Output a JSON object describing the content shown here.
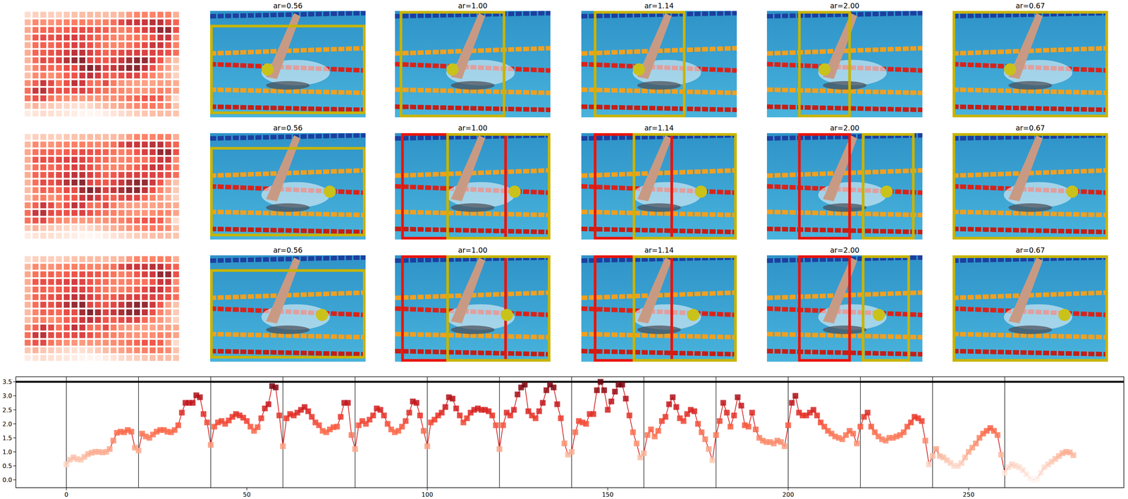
{
  "chart_data": {
    "type": "line",
    "color": "#d62728",
    "marker": "square",
    "x": [
      0,
      1,
      2,
      3,
      4,
      5,
      6,
      7,
      8,
      9,
      10,
      11,
      12,
      13,
      14,
      15,
      16,
      17,
      18,
      19,
      20,
      21,
      22,
      23,
      24,
      25,
      26,
      27,
      28,
      29,
      30,
      31,
      32,
      33,
      34,
      35,
      36,
      37,
      38,
      39,
      40,
      41,
      42,
      43,
      44,
      45,
      46,
      47,
      48,
      49,
      50,
      51,
      52,
      53,
      54,
      55,
      56,
      57,
      58,
      59,
      60,
      61,
      62,
      63,
      64,
      65,
      66,
      67,
      68,
      69,
      70,
      71,
      72,
      73,
      74,
      75,
      76,
      77,
      78,
      79,
      80,
      81,
      82,
      83,
      84,
      85,
      86,
      87,
      88,
      89,
      90,
      91,
      92,
      93,
      94,
      95,
      96,
      97,
      98,
      99,
      100,
      101,
      102,
      103,
      104,
      105,
      106,
      107,
      108,
      109,
      110,
      111,
      112,
      113,
      114,
      115,
      116,
      117,
      118,
      119,
      120,
      121,
      122,
      123,
      124,
      125,
      126,
      127,
      128,
      129,
      130,
      131,
      132,
      133,
      134,
      135,
      136,
      137,
      138,
      139,
      140,
      141,
      142,
      143,
      144,
      145,
      146,
      147,
      148,
      149,
      150,
      151,
      152,
      153,
      154,
      155,
      156,
      157,
      158,
      159,
      160,
      161,
      162,
      163,
      164,
      165,
      166,
      167,
      168,
      169,
      170,
      171,
      172,
      173,
      174,
      175,
      176,
      177,
      178,
      179,
      180,
      181,
      182,
      183,
      184,
      185,
      186,
      187,
      188,
      189,
      190,
      191,
      192,
      193,
      194,
      195,
      196,
      197,
      198,
      199,
      200,
      201,
      202,
      203,
      204,
      205,
      206,
      207,
      208,
      209,
      210,
      211,
      212,
      213,
      214,
      215,
      216,
      217,
      218,
      219,
      220,
      221,
      222,
      223,
      224,
      225,
      226,
      227,
      228,
      229,
      230,
      231,
      232,
      233,
      234,
      235,
      236,
      237,
      238,
      239,
      240,
      241,
      242,
      243,
      244,
      245,
      246,
      247,
      248,
      249,
      250,
      251,
      252,
      253,
      254,
      255,
      256,
      257,
      258,
      259,
      260,
      261,
      262,
      263,
      264,
      265,
      266,
      267,
      268,
      269,
      270,
      271,
      272,
      273,
      274,
      275,
      276,
      277,
      278,
      279
    ],
    "values": [
      0.55,
      0.72,
      0.8,
      0.74,
      0.72,
      0.82,
      0.92,
      0.97,
      1.0,
      1.0,
      0.98,
      1.0,
      1.1,
      1.4,
      1.68,
      1.72,
      1.7,
      1.78,
      1.72,
      1.15,
      1.05,
      1.65,
      1.55,
      1.5,
      1.62,
      1.72,
      1.78,
      1.78,
      1.72,
      1.7,
      1.78,
      1.95,
      2.4,
      2.75,
      2.75,
      2.75,
      3.02,
      2.95,
      2.35,
      2.05,
      1.25,
      1.9,
      2.05,
      2.1,
      2.0,
      2.12,
      2.25,
      2.35,
      2.3,
      2.22,
      2.1,
      1.9,
      1.75,
      1.88,
      2.2,
      2.55,
      2.7,
      3.35,
      3.3,
      2.3,
      1.2,
      2.2,
      2.35,
      2.3,
      2.4,
      2.5,
      2.6,
      2.45,
      2.25,
      2.05,
      1.95,
      1.75,
      1.7,
      1.8,
      1.88,
      1.9,
      2.25,
      2.75,
      2.75,
      1.6,
      1.1,
      1.95,
      2.1,
      2.0,
      2.15,
      2.3,
      2.55,
      2.5,
      2.3,
      2.0,
      1.8,
      1.7,
      1.75,
      1.9,
      2.1,
      2.4,
      2.8,
      2.75,
      2.3,
      1.75,
      1.2,
      2.05,
      2.15,
      2.3,
      2.4,
      2.6,
      2.95,
      2.9,
      2.55,
      2.3,
      2.05,
      2.2,
      2.4,
      2.5,
      2.55,
      2.5,
      2.5,
      2.45,
      2.3,
      1.95,
      1.1,
      1.95,
      2.4,
      2.3,
      2.5,
      3.05,
      3.3,
      3.4,
      2.45,
      2.3,
      2.2,
      2.45,
      2.75,
      3.2,
      3.4,
      3.3,
      2.7,
      2.2,
      1.3,
      0.9,
      1.0,
      1.7,
      2.1,
      2.05,
      2.0,
      2.35,
      2.35,
      3.2,
      3.5,
      3.2,
      2.5,
      2.8,
      3.15,
      3.4,
      3.4,
      2.9,
      2.3,
      1.7,
      1.3,
      0.8,
      0.95,
      1.6,
      1.8,
      1.55,
      1.75,
      2.1,
      2.25,
      2.7,
      2.95,
      2.6,
      2.2,
      2.1,
      2.35,
      2.5,
      2.45,
      2.0,
      1.7,
      1.45,
      1.1,
      0.7,
      1.6,
      2.1,
      2.75,
      2.4,
      1.9,
      2.3,
      2.95,
      2.65,
      1.95,
      1.9,
      2.4,
      1.8,
      1.5,
      1.4,
      1.35,
      1.35,
      1.3,
      1.4,
      1.35,
      1.2,
      1.95,
      2.75,
      3.0,
      2.4,
      2.3,
      2.3,
      2.4,
      2.5,
      2.3,
      2.05,
      1.9,
      1.75,
      1.65,
      1.55,
      1.5,
      1.45,
      1.6,
      1.75,
      1.65,
      1.3,
      1.9,
      2.25,
      2.4,
      1.9,
      1.7,
      1.55,
      1.45,
      1.4,
      1.5,
      1.5,
      1.55,
      1.6,
      1.7,
      1.9,
      2.05,
      2.25,
      2.2,
      2.1,
      1.4,
      0.55,
      0.85,
      1.1,
      0.85,
      0.8,
      0.7,
      0.6,
      0.5,
      0.5,
      0.6,
      0.8,
      1.0,
      1.15,
      1.3,
      1.5,
      1.65,
      1.75,
      1.85,
      1.75,
      1.6,
      0.9,
      0.25,
      0.45,
      0.55,
      0.5,
      0.45,
      0.35,
      0.2,
      0.05,
      0.0,
      0.05,
      0.25,
      0.45,
      0.55,
      0.65,
      0.75,
      0.85,
      0.95,
      1.0,
      0.98,
      0.88
    ],
    "color_range": [
      0,
      3.5
    ],
    "heatmap_columns": 20,
    "xlim": [
      -14,
      293
    ],
    "ylim": [
      -0.28,
      3.68
    ],
    "xticks": [
      0,
      50,
      100,
      150,
      200,
      250
    ],
    "yticks": [
      {
        "value": 0,
        "label": "0.0"
      },
      {
        "value": 0.5,
        "label": "0.5"
      },
      {
        "value": 1,
        "label": "1.0"
      },
      {
        "value": 1.5,
        "label": "1.5"
      },
      {
        "value": 2,
        "label": "2.0"
      },
      {
        "value": 2.5,
        "label": "2.5"
      },
      {
        "value": 3,
        "label": "3.0"
      },
      {
        "value": 3.5,
        "label": "3.5"
      }
    ],
    "vlines": [
      0,
      20,
      40,
      60,
      80,
      100,
      120,
      140,
      160,
      180,
      200,
      220,
      240,
      260
    ],
    "hlines": [
      3.5
    ]
  },
  "panels": {
    "rows": [
      {
        "titles": [
          "ar=0.56",
          "ar=1.00",
          "ar=1.14",
          "ar=2.00",
          "ar=0.67"
        ]
      },
      {
        "titles": [
          "ar=0.56",
          "ar=1.00",
          "ar=1.14",
          "ar=2.00",
          "ar=0.67"
        ]
      },
      {
        "titles": [
          "ar=0.56",
          "ar=1.00",
          "ar=1.14",
          "ar=2.00",
          "ar=0.67"
        ]
      }
    ]
  }
}
